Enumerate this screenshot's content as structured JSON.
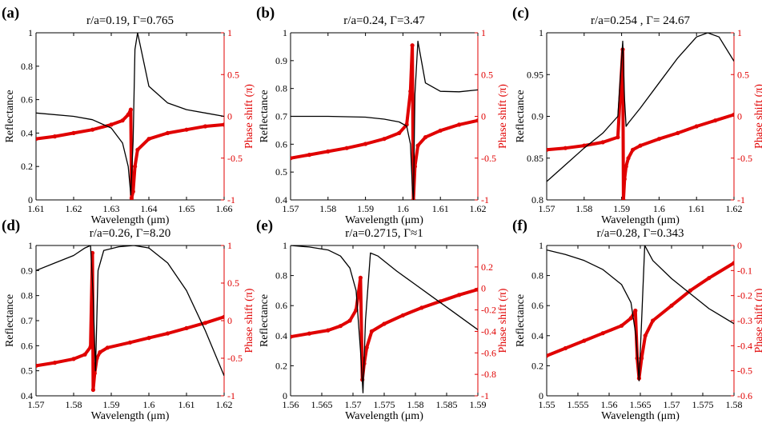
{
  "chart_data": [
    {
      "type": "line",
      "label": "(a)",
      "title": "r/a=0.19, Γ=0.765",
      "xlabel": "Wavelength (μm)",
      "ylabel": "Reflectance",
      "y2label": "Phase shift (π)",
      "xlim": [
        1.61,
        1.66
      ],
      "ylim": [
        0,
        1
      ],
      "y2lim": [
        -1,
        1
      ],
      "xticks": [
        1.61,
        1.62,
        1.63,
        1.64,
        1.65,
        1.66
      ],
      "xtick_labels": [
        "1.61",
        "1.62",
        "1.63",
        "1.64",
        "1.65",
        "1.66"
      ],
      "yticks": [
        0,
        0.2,
        0.4,
        0.6,
        0.8,
        1
      ],
      "ytick_labels": [
        "0",
        "0.2",
        "0.4",
        "0.6",
        "0.8",
        "1"
      ],
      "y2ticks": [
        -1,
        -0.5,
        0,
        0.5,
        1
      ],
      "y2tick_labels": [
        "-1",
        "-0.5",
        "0",
        "0.5",
        "1"
      ],
      "reflectance": {
        "x": [
          1.61,
          1.62,
          1.625,
          1.63,
          1.633,
          1.6345,
          1.6352,
          1.6358,
          1.6363,
          1.637,
          1.64,
          1.645,
          1.65,
          1.655,
          1.66
        ],
        "y": [
          0.52,
          0.5,
          0.48,
          0.43,
          0.34,
          0.2,
          0.03,
          0.35,
          0.9,
          1.0,
          0.68,
          0.58,
          0.54,
          0.52,
          0.5
        ]
      },
      "phase": {
        "x": [
          1.61,
          1.615,
          1.62,
          1.625,
          1.63,
          1.633,
          1.6345,
          1.6352,
          1.6354,
          1.6358,
          1.6363,
          1.637,
          1.64,
          1.645,
          1.65,
          1.655,
          1.66
        ],
        "y": [
          -0.27,
          -0.24,
          -0.2,
          -0.16,
          -0.1,
          -0.05,
          0.02,
          0.08,
          -0.98,
          -0.9,
          -0.6,
          -0.4,
          -0.27,
          -0.2,
          -0.16,
          -0.12,
          -0.1
        ]
      }
    },
    {
      "type": "line",
      "label": "(b)",
      "title": "r/a=0.24, Γ=3.47",
      "xlabel": "Wavelength (μm)",
      "ylabel": "Reflectance",
      "y2label": "Phase shift (π)",
      "xlim": [
        1.57,
        1.62
      ],
      "ylim": [
        0.4,
        1
      ],
      "y2lim": [
        -1,
        1
      ],
      "xticks": [
        1.57,
        1.58,
        1.59,
        1.6,
        1.61,
        1.62
      ],
      "xtick_labels": [
        "1.57",
        "1.58",
        "1.59",
        "1.6",
        "1.61",
        "1.62"
      ],
      "yticks": [
        0.4,
        0.5,
        0.6,
        0.7,
        0.8,
        0.9,
        1
      ],
      "ytick_labels": [
        "0.4",
        "0.5",
        "0.6",
        "0.7",
        "0.8",
        "0.9",
        "1"
      ],
      "y2ticks": [
        -1,
        -0.5,
        0,
        0.5,
        1
      ],
      "y2tick_labels": [
        "-1",
        "-0.5",
        "0",
        "0.5",
        "1"
      ],
      "reflectance": {
        "x": [
          1.57,
          1.58,
          1.59,
          1.595,
          1.599,
          1.601,
          1.602,
          1.6025,
          1.6028,
          1.6032,
          1.604,
          1.606,
          1.61,
          1.615,
          1.62
        ],
        "y": [
          0.7,
          0.7,
          0.697,
          0.69,
          0.68,
          0.665,
          0.6,
          0.45,
          0.4,
          0.78,
          0.97,
          0.82,
          0.79,
          0.788,
          0.795
        ]
      },
      "phase": {
        "x": [
          1.57,
          1.575,
          1.58,
          1.585,
          1.59,
          1.595,
          1.599,
          1.601,
          1.602,
          1.6025,
          1.6028,
          1.6032,
          1.604,
          1.606,
          1.61,
          1.615,
          1.62
        ],
        "y": [
          -0.5,
          -0.46,
          -0.42,
          -0.38,
          -0.33,
          -0.27,
          -0.2,
          -0.1,
          0.3,
          0.85,
          -1.0,
          -0.6,
          -0.35,
          -0.25,
          -0.17,
          -0.1,
          -0.05
        ]
      }
    },
    {
      "type": "line",
      "label": "(c)",
      "title": "r/a=0.254 , Γ= 24.67",
      "xlabel": "Wavelength (μm)",
      "ylabel": "Reflectance",
      "y2label": "Phase shift (π)",
      "xlim": [
        1.57,
        1.62
      ],
      "ylim": [
        0.8,
        1
      ],
      "y2lim": [
        -1,
        1
      ],
      "xticks": [
        1.57,
        1.58,
        1.59,
        1.6,
        1.61,
        1.62
      ],
      "xtick_labels": [
        "1.57",
        "1.58",
        "1.59",
        "1.6",
        "1.61",
        "1.62"
      ],
      "yticks": [
        0.8,
        0.85,
        0.9,
        0.95,
        1
      ],
      "ytick_labels": [
        "0.8",
        "0.85",
        "0.9",
        "0.95",
        "1"
      ],
      "y2ticks": [
        -1,
        -0.5,
        0,
        0.5,
        1
      ],
      "y2tick_labels": [
        "-1",
        "-0.5",
        "0",
        "0.5",
        "1"
      ],
      "reflectance": {
        "x": [
          1.57,
          1.575,
          1.58,
          1.585,
          1.589,
          1.5903,
          1.5908,
          1.5912,
          1.5918,
          1.595,
          1.6,
          1.605,
          1.61,
          1.613,
          1.616,
          1.62
        ],
        "y": [
          0.822,
          0.842,
          0.862,
          0.88,
          0.9,
          0.99,
          0.92,
          0.888,
          0.892,
          0.91,
          0.94,
          0.97,
          0.995,
          1.0,
          0.995,
          0.966
        ]
      },
      "phase": {
        "x": [
          1.57,
          1.575,
          1.58,
          1.585,
          1.589,
          1.5903,
          1.5905,
          1.5908,
          1.5912,
          1.5918,
          1.593,
          1.595,
          1.6,
          1.605,
          1.61,
          1.615,
          1.62
        ],
        "y": [
          -0.4,
          -0.38,
          -0.35,
          -0.31,
          -0.25,
          0.8,
          -1.0,
          -0.75,
          -0.6,
          -0.5,
          -0.4,
          -0.35,
          -0.27,
          -0.2,
          -0.12,
          -0.05,
          0.02
        ]
      }
    },
    {
      "type": "line",
      "label": "(d)",
      "title": "r/a=0.26, Γ=8.20",
      "xlabel": "Wavelength (μm)",
      "ylabel": "Reflectance",
      "y2label": "Phase shift (π)",
      "xlim": [
        1.57,
        1.62
      ],
      "ylim": [
        0.4,
        1
      ],
      "y2lim": [
        -1,
        1
      ],
      "xticks": [
        1.57,
        1.58,
        1.59,
        1.6,
        1.61,
        1.62
      ],
      "xtick_labels": [
        "1.57",
        "1.58",
        "1.59",
        "1.6",
        "1.61",
        "1.62"
      ],
      "yticks": [
        0.4,
        0.5,
        0.6,
        0.7,
        0.8,
        0.9,
        1
      ],
      "ytick_labels": [
        "0.4",
        "0.5",
        "0.6",
        "0.7",
        "0.8",
        "0.9",
        "1"
      ],
      "y2ticks": [
        -1,
        -0.5,
        0,
        0.5,
        1
      ],
      "y2tick_labels": [
        "-1",
        "-0.5",
        "0",
        "0.5",
        "1"
      ],
      "reflectance": {
        "x": [
          1.57,
          1.575,
          1.58,
          1.583,
          1.5845,
          1.5852,
          1.5858,
          1.5865,
          1.588,
          1.592,
          1.596,
          1.6,
          1.605,
          1.61,
          1.615,
          1.62
        ],
        "y": [
          0.9,
          0.93,
          0.96,
          0.99,
          1.0,
          0.8,
          0.5,
          0.9,
          0.98,
          0.995,
          1.0,
          0.99,
          0.93,
          0.82,
          0.66,
          0.48
        ]
      },
      "phase": {
        "x": [
          1.57,
          1.575,
          1.58,
          1.583,
          1.5845,
          1.585,
          1.5852,
          1.5856,
          1.5862,
          1.587,
          1.589,
          1.595,
          1.6,
          1.605,
          1.61,
          1.615,
          1.62
        ],
        "y": [
          -0.6,
          -0.56,
          -0.51,
          -0.45,
          -0.35,
          0.9,
          -0.92,
          -0.7,
          -0.5,
          -0.42,
          -0.36,
          -0.29,
          -0.23,
          -0.17,
          -0.1,
          -0.03,
          0.05
        ]
      }
    },
    {
      "type": "line",
      "label": "(e)",
      "title": "r/a=0.2715, Γ≈1",
      "xlabel": "Wavelength (μm)",
      "ylabel": "Reflectance",
      "y2label": "Phase shift (π)",
      "xlim": [
        1.56,
        1.59
      ],
      "ylim": [
        0,
        1
      ],
      "y2lim": [
        -1,
        0.4
      ],
      "xticks": [
        1.56,
        1.565,
        1.57,
        1.575,
        1.58,
        1.585,
        1.59
      ],
      "xtick_labels": [
        "1.56",
        "1.565",
        "1.57",
        "1.575",
        "1.58",
        "1.585",
        "1.59"
      ],
      "yticks": [
        0,
        0.2,
        0.4,
        0.6,
        0.8,
        1
      ],
      "ytick_labels": [
        "0",
        "0.2",
        "0.4",
        "0.6",
        "0.8",
        "1"
      ],
      "y2ticks": [
        -1,
        -0.8,
        -0.6,
        -0.4,
        -0.2,
        0,
        0.2
      ],
      "y2tick_labels": [
        "-1",
        "-0.8",
        "-0.6",
        "-0.4",
        "-0.2",
        "0",
        "0.2"
      ],
      "reflectance": {
        "x": [
          1.56,
          1.563,
          1.566,
          1.568,
          1.5695,
          1.5705,
          1.5712,
          1.5716,
          1.572,
          1.5728,
          1.574,
          1.577,
          1.58,
          1.583,
          1.586,
          1.59
        ],
        "y": [
          1.0,
          0.99,
          0.97,
          0.93,
          0.85,
          0.7,
          0.3,
          0.02,
          0.5,
          0.95,
          0.93,
          0.83,
          0.74,
          0.65,
          0.56,
          0.44
        ]
      },
      "phase": {
        "x": [
          1.56,
          1.563,
          1.566,
          1.568,
          1.5695,
          1.5705,
          1.5712,
          1.5715,
          1.5718,
          1.5722,
          1.573,
          1.575,
          1.578,
          1.581,
          1.584,
          1.587,
          1.59
        ],
        "y": [
          -0.45,
          -0.42,
          -0.39,
          -0.35,
          -0.3,
          -0.2,
          0.1,
          -0.85,
          -0.7,
          -0.55,
          -0.4,
          -0.33,
          -0.25,
          -0.18,
          -0.12,
          -0.06,
          -0.01
        ]
      }
    },
    {
      "type": "line",
      "label": "(f)",
      "title": "r/a=0.28, Γ=0.343",
      "xlabel": "Wavelength (μm)",
      "ylabel": "Reflectance",
      "y2label": "Phase shift (π)",
      "xlim": [
        1.55,
        1.58
      ],
      "ylim": [
        0,
        1
      ],
      "y2lim": [
        -0.6,
        0
      ],
      "xticks": [
        1.55,
        1.555,
        1.56,
        1.565,
        1.57,
        1.575,
        1.58
      ],
      "xtick_labels": [
        "1.55",
        "1.555",
        "1.56",
        "1.565",
        "1.57",
        "1.575",
        "1.58"
      ],
      "yticks": [
        0,
        0.2,
        0.4,
        0.6,
        0.8,
        1
      ],
      "ytick_labels": [
        "0",
        "0.2",
        "0.4",
        "0.6",
        "0.8",
        "1"
      ],
      "y2ticks": [
        -0.6,
        -0.5,
        -0.4,
        -0.3,
        -0.2,
        -0.1,
        0
      ],
      "y2tick_labels": [
        "-0.6",
        "-0.5",
        "-0.4",
        "-0.3",
        "-0.2",
        "-0.1",
        "0"
      ],
      "reflectance": {
        "x": [
          1.55,
          1.553,
          1.556,
          1.559,
          1.562,
          1.5635,
          1.5643,
          1.5648,
          1.5652,
          1.5657,
          1.567,
          1.57,
          1.573,
          1.576,
          1.58
        ],
        "y": [
          0.97,
          0.94,
          0.9,
          0.84,
          0.74,
          0.62,
          0.4,
          0.1,
          0.5,
          1.0,
          0.9,
          0.78,
          0.68,
          0.58,
          0.48
        ]
      },
      "phase": {
        "x": [
          1.55,
          1.553,
          1.556,
          1.559,
          1.562,
          1.5635,
          1.5642,
          1.5645,
          1.5648,
          1.5652,
          1.5658,
          1.567,
          1.57,
          1.573,
          1.576,
          1.58
        ],
        "y": [
          -0.44,
          -0.41,
          -0.38,
          -0.35,
          -0.32,
          -0.29,
          -0.26,
          -0.45,
          -0.53,
          -0.45,
          -0.36,
          -0.3,
          -0.24,
          -0.18,
          -0.13,
          -0.07
        ]
      }
    }
  ]
}
